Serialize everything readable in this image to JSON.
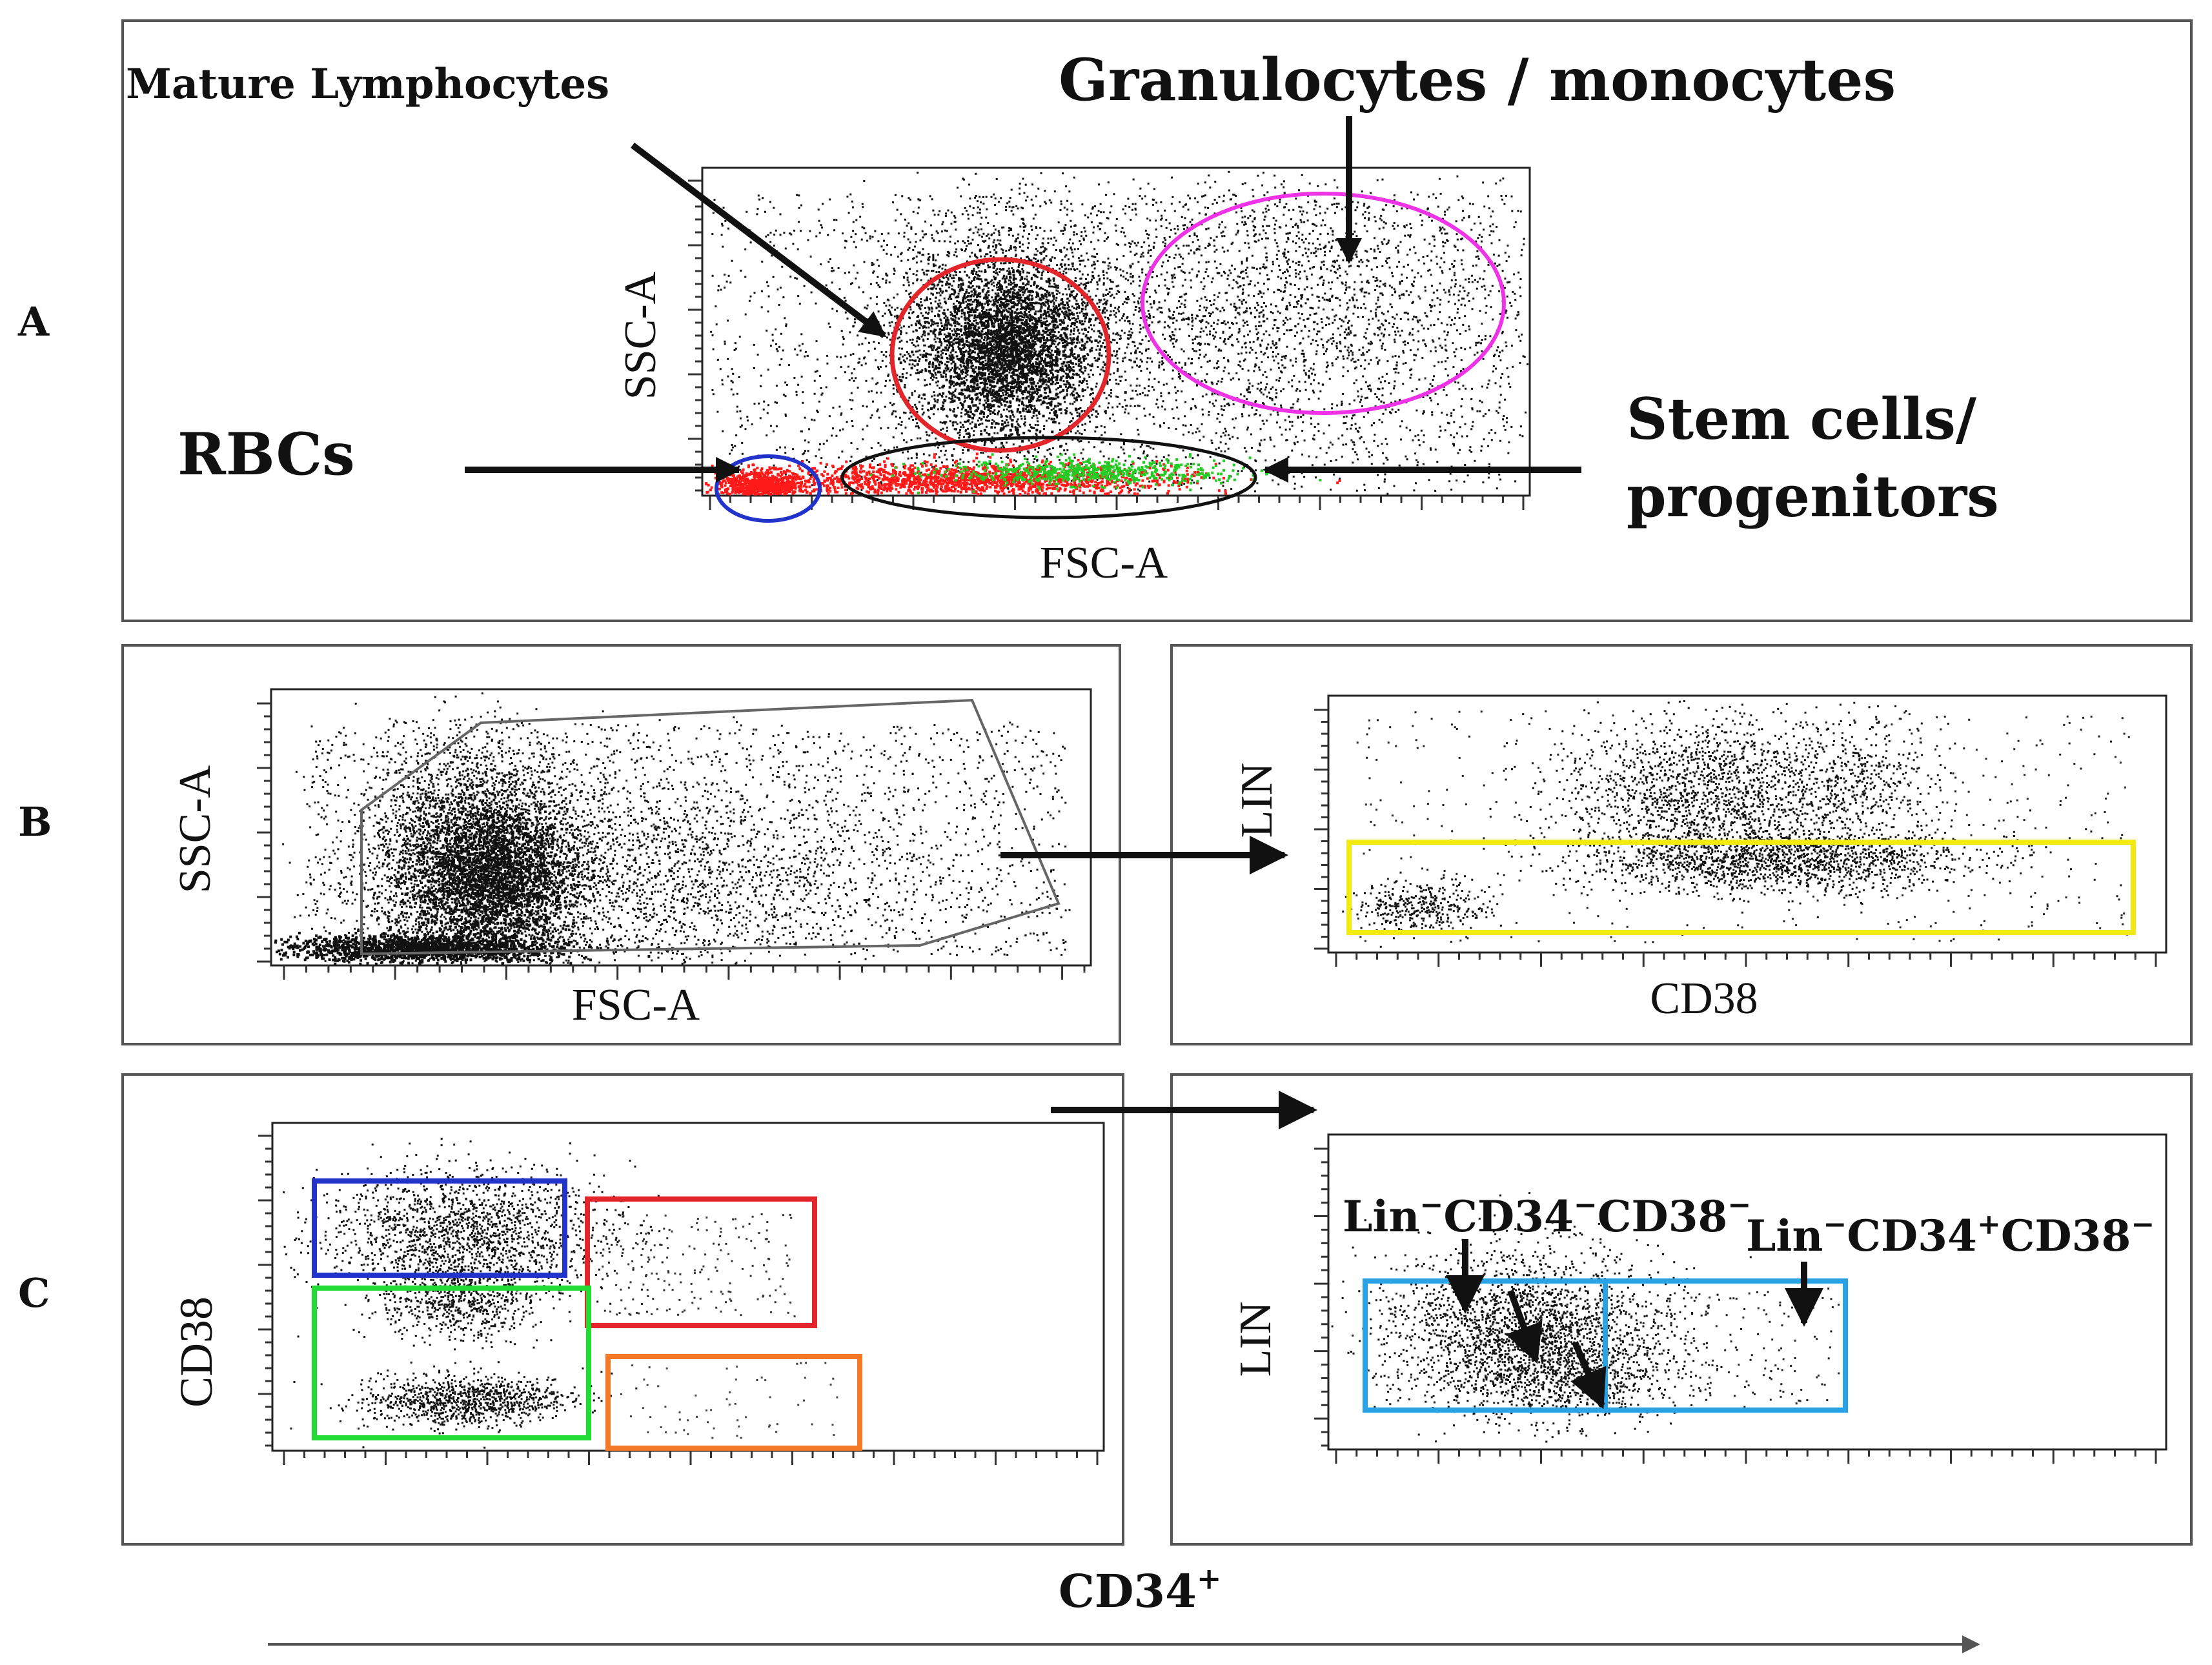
{
  "panel_labels": {
    "a": "A",
    "b": "B",
    "c": "C"
  },
  "panel_a": {
    "x_axis": "FSC-A",
    "y_axis": "SSC-A",
    "annotations": {
      "mature_lymphocytes": "Mature Lymphocytes",
      "granulocytes": "Granulocytes / monocytes",
      "rbcs": "RBCs",
      "stem_line1": "Stem cells/",
      "stem_line2": "progenitors"
    },
    "gate_colors": {
      "lymphocytes": "#e3262b",
      "granulocytes": "#ee33e6",
      "rbcs": "#2233cc",
      "stem": "#111111"
    },
    "point_colors": {
      "main": "#111111",
      "rbc": "#ff1a1a",
      "stem": "#22cc22"
    }
  },
  "panel_b_left": {
    "x_axis": "FSC-A",
    "y_axis": "SSC-A"
  },
  "panel_b_right": {
    "x_axis": "CD38",
    "y_axis": "LIN",
    "gate_color": "#f2ea10"
  },
  "panel_c_left": {
    "y_axis": "CD38",
    "gate_colors": {
      "blue": "#2233cc",
      "red": "#e3262b",
      "green": "#22dd33",
      "orange": "#f47a2a"
    }
  },
  "panel_c_right": {
    "y_axis": "LIN",
    "label_neg_main": "Lin",
    "label_neg_mid": "CD34",
    "label_neg_end": "CD38",
    "label_pos_main": "Lin",
    "label_pos_mid": "CD34",
    "label_pos_end": "CD38",
    "sup_minus": "−",
    "sup_plus": "+",
    "gate_color": "#29a3e6"
  },
  "bottom_axis": {
    "label": "CD34",
    "superscript": "+"
  }
}
